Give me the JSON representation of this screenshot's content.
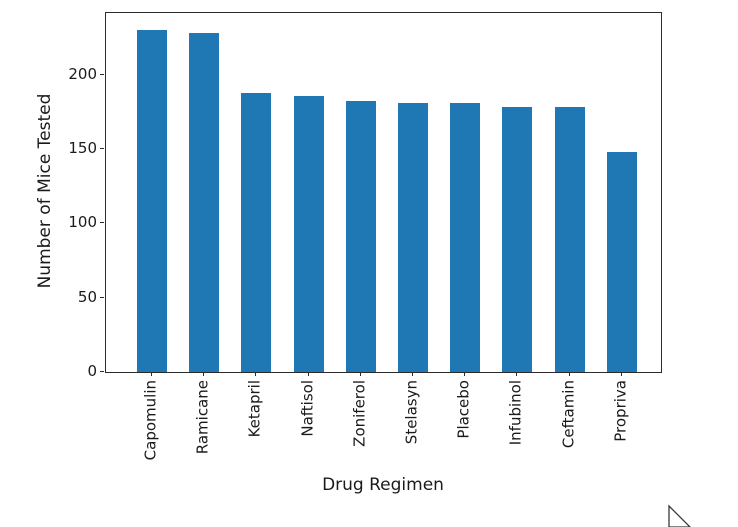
{
  "figure": {
    "background_color": "#ffffff",
    "spine_color": "#2b2b2b",
    "text_color": "#1a1a1a"
  },
  "chart_data": {
    "type": "bar",
    "title": "",
    "categories": [
      "Capomulin",
      "Ramicane",
      "Ketapril",
      "Naftisol",
      "Zoniferol",
      "Stelasyn",
      "Placebo",
      "Infubinol",
      "Ceftamin",
      "Propriva"
    ],
    "values": [
      230,
      228,
      188,
      186,
      182,
      181,
      181,
      178,
      178,
      148
    ],
    "xlabel": "Drug Regimen",
    "ylabel": "Number of Mice Tested",
    "yticks": [
      0,
      50,
      100,
      150,
      200
    ],
    "ylim": [
      0,
      241.5
    ],
    "bar_color": "#1f77b4",
    "grid": false,
    "legend_position": "none",
    "x_tick_label_rotation": 90
  },
  "cursor": {
    "icon": "arrow-cursor"
  }
}
